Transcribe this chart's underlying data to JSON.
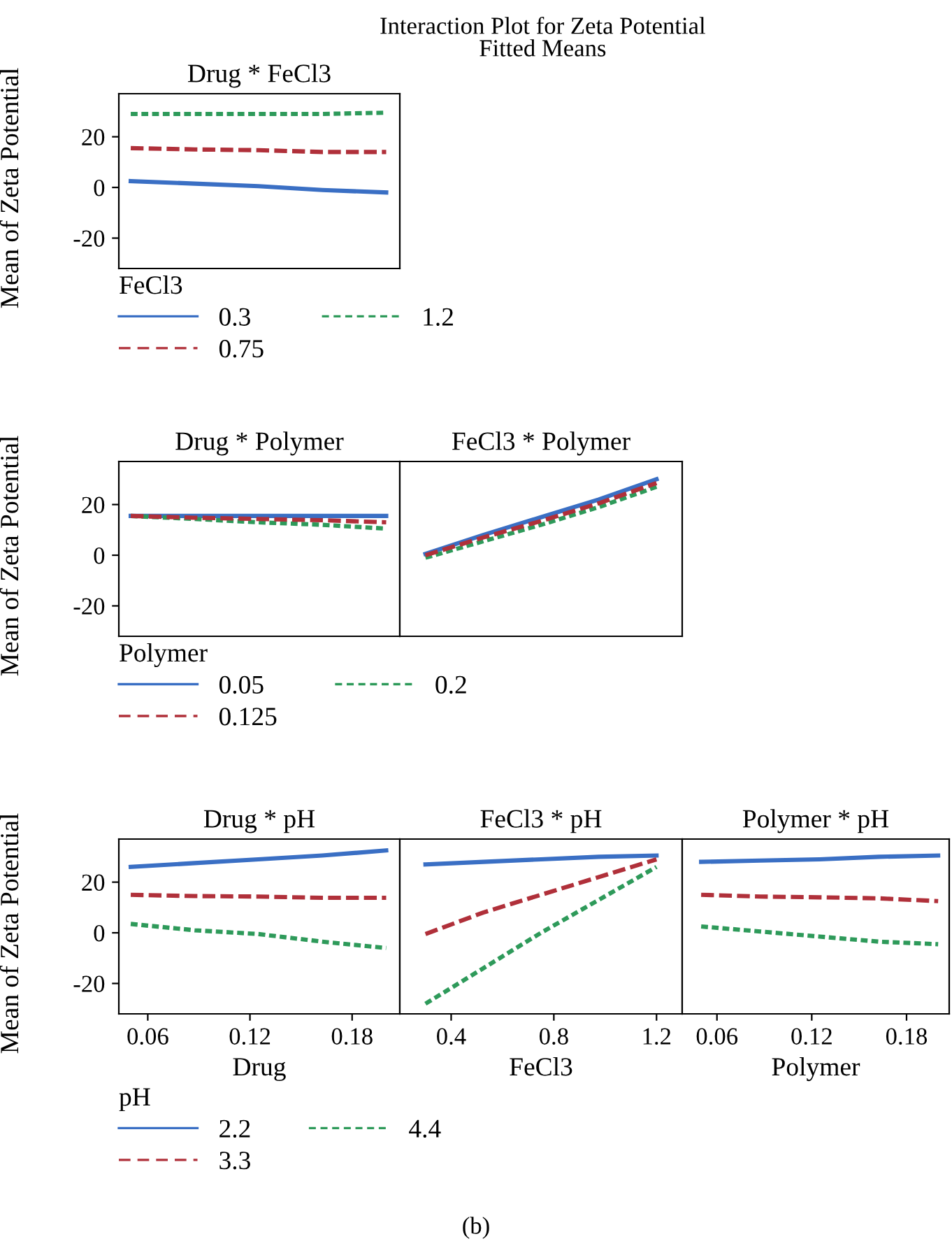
{
  "chart_data": [
    {
      "type": "line",
      "title": "Drug * FeCl3",
      "ylabel": "Mean of Zeta Potential",
      "legend_title": "FeCl3",
      "legend": "bottom",
      "tick_labels": "y",
      "annotations": [
        "Interaction Plot for Zeta Potential",
        "Fitted Means",
        "(b)"
      ],
      "x": [
        0.05,
        0.0875,
        0.125,
        0.1625,
        0.2
      ],
      "xlim": [
        0.043,
        0.208
      ],
      "ylim": [
        -32,
        37
      ],
      "yticks": [
        -20,
        0,
        20
      ],
      "series": [
        {
          "name": "0.3",
          "color": "#3a6fc4",
          "line_style": "solid",
          "values": [
            2.5,
            1.5,
            0.5,
            -1,
            -2
          ]
        },
        {
          "name": "0.75",
          "color": "#b0303a",
          "line_style": "dashed",
          "values": [
            15.5,
            15,
            14.7,
            14,
            14
          ]
        },
        {
          "name": "1.2",
          "color": "#2e9a5a",
          "line_style": "dotted",
          "values": [
            29,
            29,
            29,
            29,
            29.5
          ]
        }
      ]
    },
    {
      "type": "line",
      "title": "Drug * Polymer",
      "ylabel": "Mean of Zeta Potential",
      "legend_title": "Polymer",
      "legend": "bottom",
      "tick_labels": "y",
      "x": [
        0.05,
        0.0875,
        0.125,
        0.1625,
        0.2
      ],
      "xlim": [
        0.043,
        0.208
      ],
      "ylim": [
        -32,
        37
      ],
      "yticks": [
        -20,
        0,
        20
      ],
      "series": [
        {
          "name": "0.05",
          "color": "#3a6fc4",
          "line_style": "solid",
          "values": [
            15.5,
            15.5,
            15.5,
            15.5,
            15.5
          ]
        },
        {
          "name": "0.125",
          "color": "#b0303a",
          "line_style": "dashed",
          "values": [
            15.5,
            14.8,
            14.3,
            13.8,
            13
          ]
        },
        {
          "name": "0.2",
          "color": "#2e9a5a",
          "line_style": "dotted",
          "values": [
            15.5,
            14.3,
            13,
            12,
            10.5
          ]
        }
      ]
    },
    {
      "type": "line",
      "title": "FeCl3 * Polymer",
      "tick_labels": false,
      "x": [
        0.3,
        0.525,
        0.75,
        0.975,
        1.2
      ],
      "xlim": [
        0.2,
        1.3
      ],
      "ylim": [
        -32,
        37
      ],
      "series": [
        {
          "color": "#3a6fc4",
          "line_style": "solid",
          "values": [
            0.5,
            8,
            15,
            22,
            30
          ]
        },
        {
          "color": "#b0303a",
          "line_style": "dashed",
          "values": [
            0,
            7,
            13.5,
            20.5,
            28.5
          ]
        },
        {
          "color": "#2e9a5a",
          "line_style": "dotted",
          "values": [
            -1,
            5.5,
            12,
            19,
            27
          ]
        }
      ]
    },
    {
      "type": "line",
      "title": "Drug * pH",
      "ylabel": "Mean of Zeta Potential",
      "xlabel": "Drug",
      "legend_title": "pH",
      "legend": "bottom",
      "x": [
        0.05,
        0.0875,
        0.125,
        0.1625,
        0.2
      ],
      "xlim": [
        0.043,
        0.208
      ],
      "xticks": [
        0.06,
        0.12,
        0.18
      ],
      "ylim": [
        -32,
        37
      ],
      "yticks": [
        -20,
        0,
        20
      ],
      "series": [
        {
          "name": "2.2",
          "color": "#3a6fc4",
          "line_style": "solid",
          "values": [
            26,
            27.5,
            29,
            30.5,
            32.5
          ]
        },
        {
          "name": "3.3",
          "color": "#b0303a",
          "line_style": "dashed",
          "values": [
            15,
            14.5,
            14.3,
            13.8,
            13.8
          ]
        },
        {
          "name": "4.4",
          "color": "#2e9a5a",
          "line_style": "dotted",
          "values": [
            3.5,
            1,
            -0.5,
            -3.5,
            -6
          ]
        }
      ]
    },
    {
      "type": "line",
      "title": "FeCl3 * pH",
      "xlabel": "FeCl3",
      "tick_labels": "x",
      "x": [
        0.3,
        0.525,
        0.75,
        0.975,
        1.2
      ],
      "xlim": [
        0.2,
        1.3
      ],
      "xticks": [
        0.4,
        0.8,
        1.2
      ],
      "ylim": [
        -32,
        37
      ],
      "series": [
        {
          "color": "#3a6fc4",
          "line_style": "solid",
          "values": [
            27,
            28,
            29,
            30,
            30.5
          ]
        },
        {
          "color": "#b0303a",
          "line_style": "dashed",
          "values": [
            -0.5,
            8,
            15,
            22,
            29
          ]
        },
        {
          "color": "#2e9a5a",
          "line_style": "dotted",
          "values": [
            -28,
            -14,
            0,
            13,
            26
          ]
        }
      ]
    },
    {
      "type": "line",
      "title": "Polymer * pH",
      "xlabel": "Polymer",
      "tick_labels": "x",
      "x": [
        0.05,
        0.0875,
        0.125,
        0.1625,
        0.2
      ],
      "xlim": [
        0.038,
        0.207
      ],
      "xticks": [
        0.06,
        0.12,
        0.18
      ],
      "ylim": [
        -32,
        37
      ],
      "series": [
        {
          "color": "#3a6fc4",
          "line_style": "solid",
          "values": [
            28,
            28.5,
            29,
            30,
            30.5
          ]
        },
        {
          "color": "#b0303a",
          "line_style": "dashed",
          "values": [
            15,
            14.3,
            14,
            13.6,
            12.5
          ]
        },
        {
          "color": "#2e9a5a",
          "line_style": "dotted",
          "values": [
            2.5,
            0.5,
            -1.5,
            -3.5,
            -4.5
          ]
        }
      ]
    }
  ]
}
